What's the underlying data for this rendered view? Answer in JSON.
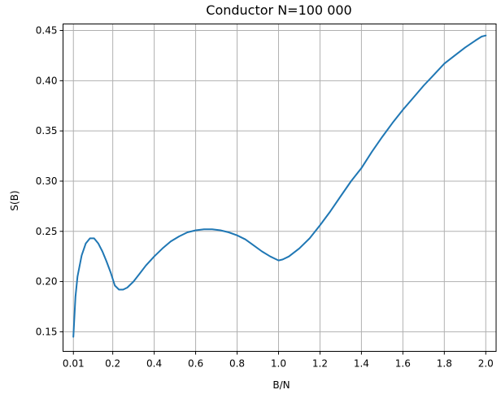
{
  "chart_data": {
    "type": "line",
    "title": "Conductor N=100 000",
    "xlabel": "B/N",
    "ylabel": "S(B)",
    "xlim": [
      -0.04,
      2.05
    ],
    "ylim": [
      0.1305,
      0.4565
    ],
    "grid": true,
    "x_ticks": [
      0.01,
      0.2,
      0.4,
      0.6,
      0.8,
      1.0,
      1.2,
      1.4,
      1.6,
      1.8,
      2.0
    ],
    "x_tick_labels": [
      "0.01",
      "0.2",
      "0.4",
      "0.6",
      "0.8",
      "1.0",
      "1.2",
      "1.4",
      "1.6",
      "1.8",
      "2.0"
    ],
    "y_ticks": [
      0.15,
      0.2,
      0.25,
      0.3,
      0.35,
      0.4,
      0.45
    ],
    "y_tick_labels": [
      "0.15",
      "0.20",
      "0.25",
      "0.30",
      "0.35",
      "0.40",
      "0.45"
    ],
    "colors": {
      "series": "#1f77b4",
      "grid": "#b0b0b0",
      "axes": "#000000"
    },
    "series": [
      {
        "x": [
          0.01,
          0.02,
          0.03,
          0.05,
          0.07,
          0.09,
          0.11,
          0.13,
          0.15,
          0.17,
          0.19,
          0.21,
          0.23,
          0.25,
          0.27,
          0.3,
          0.33,
          0.36,
          0.4,
          0.44,
          0.48,
          0.52,
          0.56,
          0.6,
          0.64,
          0.68,
          0.72,
          0.76,
          0.8,
          0.84,
          0.88,
          0.92,
          0.96,
          0.99,
          1.0,
          1.02,
          1.05,
          1.1,
          1.15,
          1.2,
          1.25,
          1.3,
          1.35,
          1.4,
          1.45,
          1.5,
          1.55,
          1.6,
          1.65,
          1.7,
          1.75,
          1.8,
          1.85,
          1.9,
          1.95,
          1.98,
          2.0
        ],
        "y": [
          0.145,
          0.185,
          0.205,
          0.226,
          0.238,
          0.243,
          0.243,
          0.238,
          0.23,
          0.22,
          0.209,
          0.196,
          0.192,
          0.192,
          0.194,
          0.2,
          0.208,
          0.216,
          0.225,
          0.233,
          0.24,
          0.245,
          0.249,
          0.251,
          0.252,
          0.252,
          0.251,
          0.249,
          0.246,
          0.242,
          0.236,
          0.23,
          0.225,
          0.222,
          0.221,
          0.222,
          0.225,
          0.233,
          0.243,
          0.256,
          0.27,
          0.285,
          0.3,
          0.313,
          0.329,
          0.344,
          0.358,
          0.371,
          0.383,
          0.395,
          0.406,
          0.417,
          0.425,
          0.433,
          0.44,
          0.444,
          0.445
        ]
      }
    ]
  }
}
